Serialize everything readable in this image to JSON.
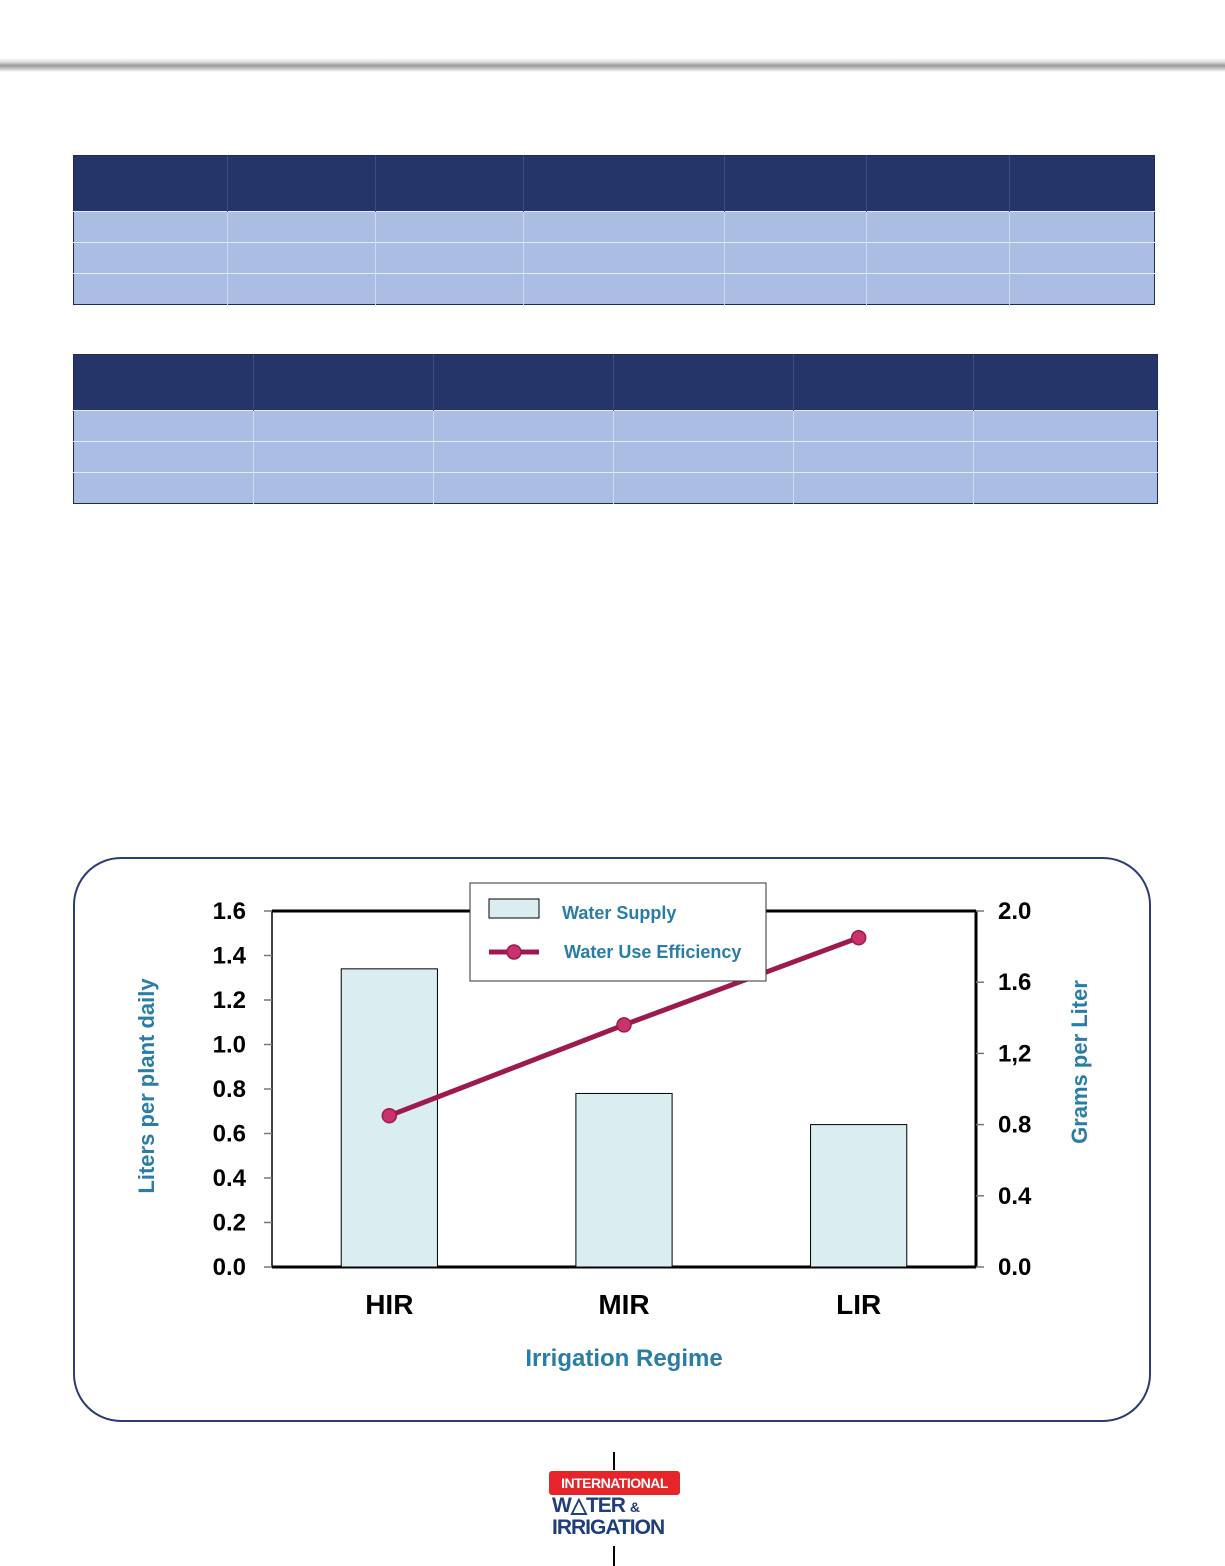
{
  "tables": [
    {
      "columns": 7,
      "body_rows": 3
    },
    {
      "columns": 6,
      "body_rows": 3
    }
  ],
  "colors": {
    "table_header": "#253569",
    "table_row": "#aabde3",
    "frame_border": "#2b3b76",
    "axis_title": "#2a7da6",
    "bar_fill": "#daeef2",
    "line": "#9c1a4f",
    "marker": "#c8336b",
    "logo_red": "#e5252a",
    "logo_blue": "#1f3e7a"
  },
  "chart_data": {
    "type": "bar",
    "categories": [
      "HIR",
      "MIR",
      "LIR"
    ],
    "xlabel": "Irrigation Regime",
    "ylabel": "Liters per plant daily",
    "y2label": "Grams per Liter",
    "ylim": [
      0,
      1.6
    ],
    "y2lim": [
      0,
      2.0
    ],
    "yticks": [
      "0.0",
      "0.2",
      "0.4",
      "0.6",
      "0.8",
      "1.0",
      "1.2",
      "1.4",
      "1.6"
    ],
    "y2ticks": [
      "0.0",
      "0.4",
      "0.8",
      "1,2",
      "1.6",
      "2.0"
    ],
    "series": [
      {
        "name": "Water Supply",
        "kind": "bar",
        "axis": "left",
        "values": [
          1.34,
          0.78,
          0.64
        ]
      },
      {
        "name": "Water Use Efficiency",
        "kind": "line",
        "axis": "right",
        "values": [
          0.85,
          1.36,
          1.85
        ]
      }
    ],
    "legend": "top-center",
    "grid": false
  },
  "logo": {
    "line1": "INTERNATIONAL",
    "line2": "W△TER",
    "amp": "&",
    "line3": "IRRIGATION"
  }
}
